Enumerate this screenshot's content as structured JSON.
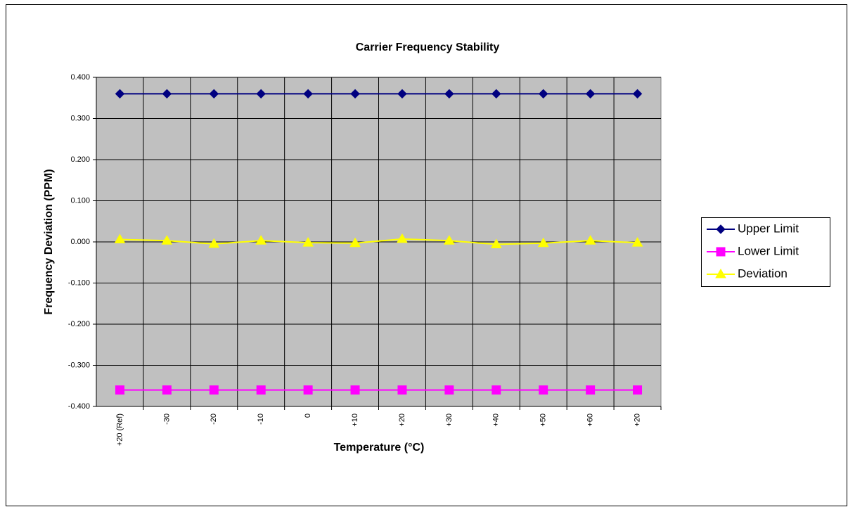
{
  "chart_data": {
    "type": "line",
    "title": "Carrier Frequency Stability",
    "x_label": "Temperature (°C)",
    "y_label": "Frequency Deviation (PPM)",
    "categories": [
      "+20 (Ref)",
      "-30",
      "-20",
      "-10",
      "0",
      "+10",
      "+20",
      "+30",
      "+40",
      "+50",
      "+60",
      "+20"
    ],
    "series": [
      {
        "name": "Upper Limit",
        "color": "#000080",
        "marker": "diamond",
        "values": [
          0.36,
          0.36,
          0.36,
          0.36,
          0.36,
          0.36,
          0.36,
          0.36,
          0.36,
          0.36,
          0.36,
          0.36
        ]
      },
      {
        "name": "Lower Limit",
        "color": "#ff00ff",
        "marker": "square",
        "values": [
          -0.36,
          -0.36,
          -0.36,
          -0.36,
          -0.36,
          -0.36,
          -0.36,
          -0.36,
          -0.36,
          -0.36,
          -0.36,
          -0.36
        ]
      },
      {
        "name": "Deviation",
        "color": "#ffff00",
        "marker": "triangle",
        "values": [
          0.006,
          0.003,
          -0.005,
          0.003,
          -0.002,
          -0.003,
          0.007,
          0.003,
          -0.006,
          -0.003,
          0.003,
          -0.002
        ]
      }
    ],
    "ylim": [
      -0.4,
      0.4
    ],
    "yticks": [
      {
        "value": -0.4,
        "label": "-0.400"
      },
      {
        "value": -0.3,
        "label": "-0.300"
      },
      {
        "value": -0.2,
        "label": "-0.200"
      },
      {
        "value": -0.1,
        "label": "-0.100"
      },
      {
        "value": 0,
        "label": "0.000"
      },
      {
        "value": 0.1,
        "label": "0.100"
      },
      {
        "value": 0.2,
        "label": "0.200"
      },
      {
        "value": 0.3,
        "label": "0.300"
      },
      {
        "value": 0.4,
        "label": "0.400"
      }
    ],
    "grid": true,
    "plot_background": "#c0c0c0",
    "legend": "right"
  }
}
